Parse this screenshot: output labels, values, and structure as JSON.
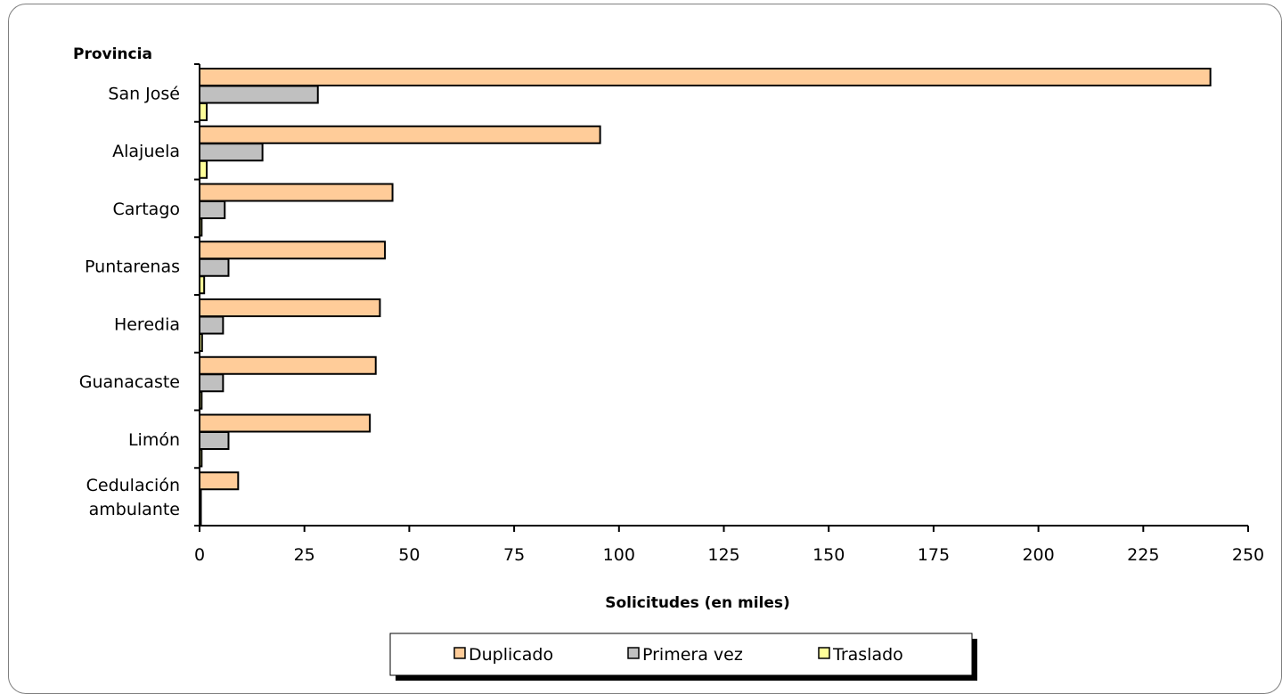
{
  "chart_data": {
    "type": "bar",
    "orientation": "horizontal",
    "y_axis_title": "Provincia",
    "xlabel": "Solicitudes (en miles)",
    "categories": [
      [
        "San José"
      ],
      [
        "Alajuela"
      ],
      [
        "Cartago"
      ],
      [
        "Puntarenas"
      ],
      [
        "Heredia"
      ],
      [
        "Guanacaste"
      ],
      [
        "Limón"
      ],
      [
        "Cedulación",
        "ambulante"
      ]
    ],
    "series": [
      {
        "name": "Duplicado",
        "color": "#ffcc99",
        "values": [
          241,
          95.5,
          46,
          44.2,
          43,
          42,
          40.6,
          9.2
        ]
      },
      {
        "name": "Primera vez",
        "color": "#c0c0c0",
        "values": [
          28.2,
          15,
          6,
          6.9,
          5.6,
          5.6,
          6.9,
          0.3
        ]
      },
      {
        "name": "Traslado",
        "color": "#ffff99",
        "values": [
          1.7,
          1.7,
          0.5,
          1.1,
          0.6,
          0.5,
          0.5,
          0.3
        ]
      }
    ],
    "xlim": [
      0,
      250
    ],
    "xticks": [
      "0",
      "25",
      "50",
      "75",
      "100",
      "125",
      "150",
      "175",
      "200",
      "225",
      "250"
    ],
    "grid": false,
    "legend_position": "bottom"
  }
}
